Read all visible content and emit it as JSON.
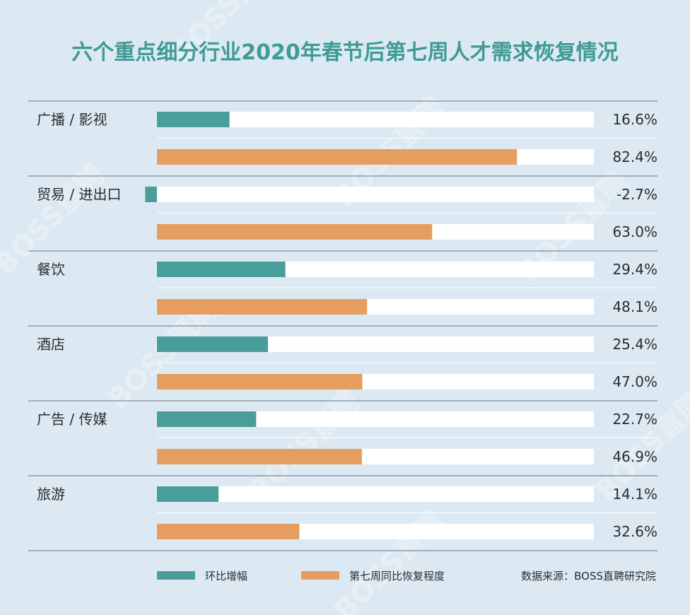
{
  "chart_data": {
    "type": "bar",
    "orientation": "horizontal",
    "title": "六个重点细分行业2020年春节后第七周人才需求恢复情况",
    "categories": [
      "广播 / 影视",
      "贸易 / 进出口",
      "餐饮",
      "酒店",
      "广告 / 传媒",
      "旅游"
    ],
    "series": [
      {
        "name": "环比增幅",
        "color": "#4a9e9a",
        "values": [
          16.6,
          -2.7,
          29.4,
          25.4,
          22.7,
          14.1
        ]
      },
      {
        "name": "第七周同比恢复程度",
        "color": "#e59e5f",
        "values": [
          82.4,
          63.0,
          48.1,
          47.0,
          46.9,
          32.6
        ]
      }
    ],
    "value_labels": [
      [
        "16.6%",
        "-2.7%",
        "29.4%",
        "25.4%",
        "22.7%",
        "14.1%"
      ],
      [
        "82.4%",
        "63.0%",
        "48.1%",
        "47.0%",
        "46.9%",
        "32.6%"
      ]
    ],
    "xlim": [
      0,
      100
    ],
    "legend": "bottom",
    "source": "数据来源：BOSS直聘研究院"
  },
  "watermark": "BOSS直聘",
  "colors": {
    "background": "#dde9f2",
    "title": "#3e9b96",
    "track": "#ffffff",
    "divider": "#8f9aa3",
    "text": "#2c2c2c"
  }
}
